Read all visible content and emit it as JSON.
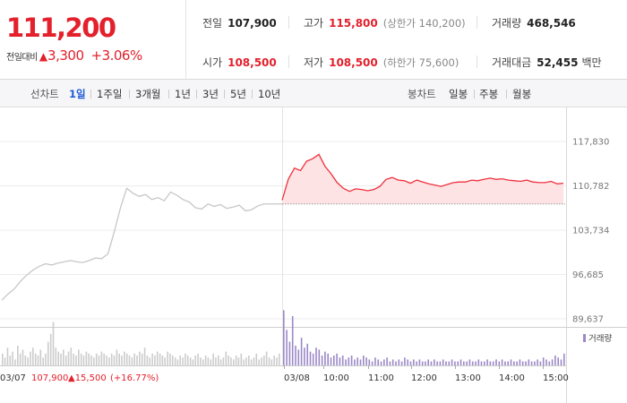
{
  "quote": {
    "price": "111,200",
    "change_label": "전일대비",
    "change_symbol": "▲",
    "change_amount": "3,300",
    "change_pct": "+3.06%",
    "prev_close": {
      "label": "전일",
      "value": "107,900"
    },
    "high": {
      "label": "고가",
      "value": "115,800",
      "sub": "(상한가 140,200)"
    },
    "volume": {
      "label": "거래량",
      "value": "468,546"
    },
    "open": {
      "label": "시가",
      "value": "108,500"
    },
    "low": {
      "label": "저가",
      "value": "108,500",
      "sub": "(하한가 75,600)"
    },
    "amount": {
      "label": "거래대금",
      "value": "52,455",
      "unit": "백만"
    }
  },
  "tabs": {
    "line_label": "선차트",
    "periods": [
      "1일",
      "1주일",
      "3개월",
      "1년",
      "3년",
      "5년",
      "10년"
    ],
    "active_period": "1일",
    "candle_label": "봉차트",
    "candles": [
      "일봉",
      "주봉",
      "월봉"
    ]
  },
  "chart_data": {
    "type": "line",
    "y_ticks": [
      "117,830",
      "110,782",
      "103,734",
      "96,685",
      "89,637"
    ],
    "ylim": [
      89637,
      117830
    ],
    "prev_close_line": 107900,
    "x_labels": [
      "03/08",
      "10:00",
      "11:00",
      "12:00",
      "13:00",
      "14:00",
      "15:00"
    ],
    "legend": "거래량",
    "footer": {
      "date": "03/07",
      "price": "107,900",
      "change": "▲15,500",
      "pct": "(+16.77%)"
    },
    "series": [
      {
        "session": "03/07",
        "points": [
          [
            0,
            92600
          ],
          [
            1,
            93600
          ],
          [
            2,
            94400
          ],
          [
            3,
            95600
          ],
          [
            4,
            96600
          ],
          [
            5,
            97400
          ],
          [
            6,
            98000
          ],
          [
            7,
            98400
          ],
          [
            8,
            98200
          ],
          [
            9,
            98500
          ],
          [
            10,
            98700
          ],
          [
            11,
            98900
          ],
          [
            12,
            98700
          ],
          [
            13,
            98600
          ],
          [
            14,
            98900
          ],
          [
            15,
            99300
          ],
          [
            16,
            99200
          ],
          [
            17,
            100000
          ],
          [
            18,
            103500
          ],
          [
            19,
            107300
          ],
          [
            20,
            110400
          ],
          [
            21,
            109600
          ],
          [
            22,
            109100
          ],
          [
            23,
            109400
          ],
          [
            24,
            108600
          ],
          [
            25,
            108900
          ],
          [
            26,
            108400
          ],
          [
            27,
            109800
          ],
          [
            28,
            109300
          ],
          [
            29,
            108600
          ],
          [
            30,
            108200
          ],
          [
            31,
            107300
          ],
          [
            32,
            107100
          ],
          [
            33,
            107900
          ],
          [
            34,
            107500
          ],
          [
            35,
            107800
          ],
          [
            36,
            107200
          ],
          [
            37,
            107400
          ],
          [
            38,
            107700
          ],
          [
            39,
            106800
          ],
          [
            40,
            107000
          ],
          [
            41,
            107600
          ],
          [
            42,
            107900
          ]
        ]
      },
      {
        "session": "03/08",
        "points": [
          [
            0,
            108500
          ],
          [
            1,
            111800
          ],
          [
            2,
            113600
          ],
          [
            3,
            113200
          ],
          [
            4,
            114700
          ],
          [
            5,
            115100
          ],
          [
            6,
            115800
          ],
          [
            7,
            113900
          ],
          [
            8,
            112700
          ],
          [
            9,
            111300
          ],
          [
            10,
            110400
          ],
          [
            11,
            109900
          ],
          [
            12,
            110300
          ],
          [
            13,
            110200
          ],
          [
            14,
            110000
          ],
          [
            15,
            110200
          ],
          [
            16,
            110700
          ],
          [
            17,
            111800
          ],
          [
            18,
            112100
          ],
          [
            19,
            111700
          ],
          [
            20,
            111600
          ],
          [
            21,
            111200
          ],
          [
            22,
            111700
          ],
          [
            23,
            111400
          ],
          [
            24,
            111100
          ],
          [
            25,
            110900
          ],
          [
            26,
            110700
          ],
          [
            27,
            111000
          ],
          [
            28,
            111300
          ],
          [
            29,
            111400
          ],
          [
            30,
            111400
          ],
          [
            31,
            111700
          ],
          [
            32,
            111600
          ],
          [
            33,
            111800
          ],
          [
            34,
            112000
          ],
          [
            35,
            111800
          ],
          [
            36,
            111900
          ],
          [
            37,
            111700
          ],
          [
            38,
            111600
          ],
          [
            39,
            111500
          ],
          [
            40,
            111700
          ],
          [
            41,
            111400
          ],
          [
            42,
            111300
          ],
          [
            43,
            111300
          ],
          [
            44,
            111500
          ],
          [
            45,
            111100
          ],
          [
            46,
            111200
          ]
        ]
      }
    ],
    "volume": {
      "prev_session": [
        6,
        4,
        9,
        5,
        7,
        3,
        10,
        6,
        8,
        5,
        4,
        7,
        9,
        6,
        5,
        8,
        4,
        6,
        12,
        16,
        22,
        9,
        7,
        6,
        8,
        5,
        7,
        9,
        6,
        5,
        8,
        6,
        5,
        7,
        6,
        5,
        4,
        6,
        5,
        7,
        6,
        5,
        4,
        6,
        5,
        8,
        6,
        5,
        7,
        6,
        5,
        4,
        6,
        5,
        7,
        6,
        9,
        5,
        4,
        6,
        5,
        7,
        6,
        5,
        4,
        7,
        6,
        5,
        4,
        3,
        5,
        4,
        6,
        5,
        4,
        3,
        5,
        6,
        4,
        3,
        5,
        4,
        3,
        6,
        4,
        5,
        3,
        4,
        7,
        5,
        4,
        3,
        5,
        4,
        6,
        3,
        4,
        5,
        3,
        4,
        6,
        3,
        4,
        5,
        7,
        4,
        3,
        5,
        4,
        6
      ],
      "curr_session": [
        28,
        18,
        12,
        25,
        10,
        8,
        14,
        9,
        11,
        7,
        6,
        9,
        8,
        5,
        7,
        6,
        4,
        5,
        6,
        4,
        5,
        3,
        4,
        5,
        3,
        4,
        3,
        5,
        4,
        3,
        2,
        4,
        3,
        2,
        3,
        4,
        2,
        3,
        2,
        3,
        2,
        4,
        3,
        2,
        3,
        2,
        3,
        2,
        2,
        3,
        2,
        3,
        2,
        2,
        3,
        2,
        2,
        3,
        2,
        2,
        3,
        2,
        2,
        3,
        2,
        2,
        3,
        2,
        2,
        3,
        2,
        2,
        3,
        2,
        3,
        2,
        2,
        3,
        2,
        2,
        3,
        2,
        2,
        3,
        2,
        2,
        3,
        2,
        4,
        3,
        2,
        3,
        5,
        4,
        3,
        6
      ]
    }
  }
}
